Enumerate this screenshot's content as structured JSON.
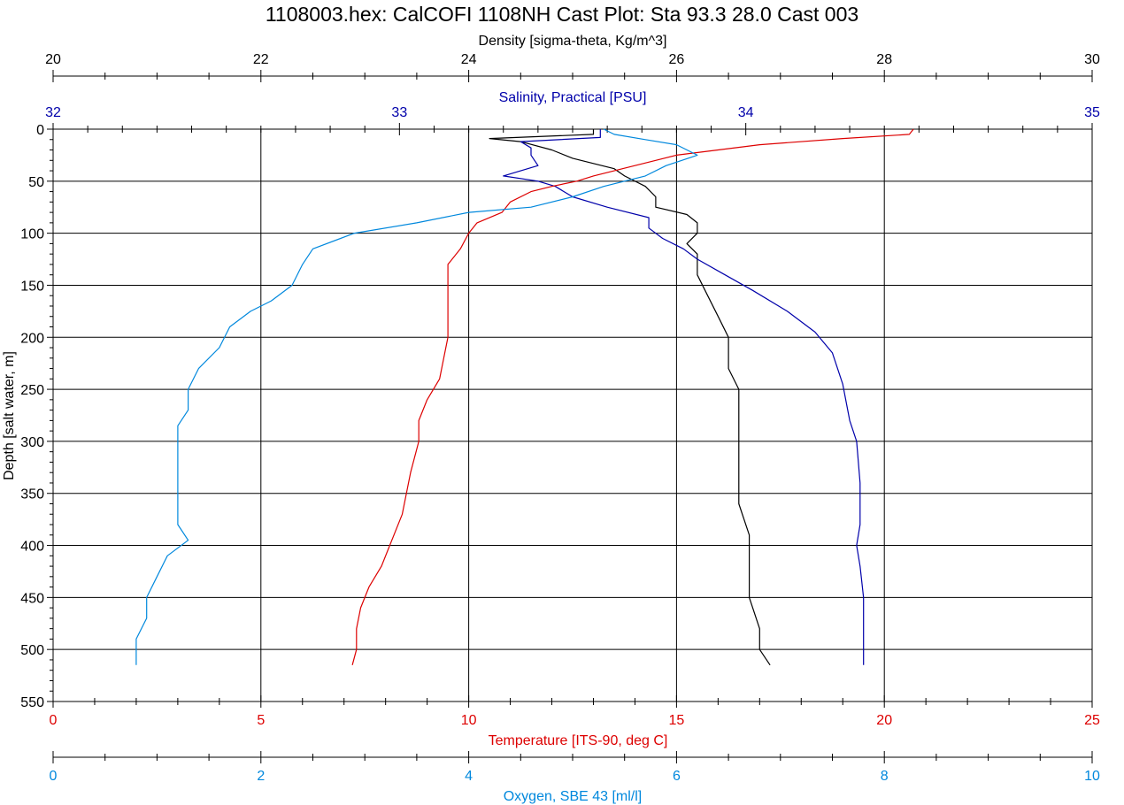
{
  "chart_data": {
    "type": "line",
    "title": "1108003.hex: CalCOFI 1108NH Cast Plot: Sta 93.3 28.0 Cast 003",
    "grid": true,
    "y_axis": {
      "label": "Depth [salt water, m]",
      "range": [
        0,
        550
      ],
      "inverted": true,
      "ticks": [
        "0",
        "50",
        "100",
        "150",
        "200",
        "250",
        "300",
        "350",
        "400",
        "450",
        "500",
        "550"
      ],
      "color": "#000000"
    },
    "axes": {
      "density": {
        "label": "Density [sigma-theta, Kg/m^3]",
        "position": "top",
        "range": [
          20,
          30
        ],
        "ticks": [
          "20",
          "22",
          "24",
          "26",
          "28",
          "30"
        ],
        "color": "#000000"
      },
      "salinity": {
        "label": "Salinity, Practical [PSU]",
        "position": "top",
        "range": [
          32,
          35
        ],
        "ticks": [
          "32",
          "33",
          "34",
          "35"
        ],
        "color": "#0000aa"
      },
      "temperature": {
        "label": "Temperature [ITS-90, deg C]",
        "position": "bottom",
        "range": [
          0,
          25
        ],
        "ticks": [
          "0",
          "5",
          "10",
          "15",
          "20",
          "25"
        ],
        "color": "#dd0000"
      },
      "oxygen": {
        "label": "Oxygen, SBE 43 [ml/l]",
        "position": "bottom",
        "range": [
          0,
          10
        ],
        "ticks": [
          "0",
          "2",
          "4",
          "6",
          "8",
          "10"
        ],
        "color": "#0088dd"
      }
    },
    "series": [
      {
        "axis": "density",
        "color": "#000000",
        "points": [
          [
            0,
            25.2
          ],
          [
            5,
            25.2
          ],
          [
            9,
            24.2
          ],
          [
            12,
            24.5
          ],
          [
            20,
            24.8
          ],
          [
            28,
            25.0
          ],
          [
            38,
            25.4
          ],
          [
            45,
            25.5
          ],
          [
            55,
            25.7
          ],
          [
            65,
            25.8
          ],
          [
            75,
            25.8
          ],
          [
            82,
            26.1
          ],
          [
            90,
            26.2
          ],
          [
            100,
            26.2
          ],
          [
            110,
            26.1
          ],
          [
            120,
            26.2
          ],
          [
            140,
            26.2
          ],
          [
            160,
            26.3
          ],
          [
            180,
            26.4
          ],
          [
            200,
            26.5
          ],
          [
            230,
            26.5
          ],
          [
            250,
            26.6
          ],
          [
            280,
            26.6
          ],
          [
            300,
            26.6
          ],
          [
            330,
            26.6
          ],
          [
            360,
            26.6
          ],
          [
            390,
            26.7
          ],
          [
            420,
            26.7
          ],
          [
            450,
            26.7
          ],
          [
            480,
            26.8
          ],
          [
            500,
            26.8
          ],
          [
            515,
            26.9
          ]
        ]
      },
      {
        "axis": "salinity",
        "color": "#0000aa",
        "points": [
          [
            0,
            33.58
          ],
          [
            8,
            33.58
          ],
          [
            12,
            33.35
          ],
          [
            18,
            33.38
          ],
          [
            25,
            33.38
          ],
          [
            35,
            33.4
          ],
          [
            45,
            33.3
          ],
          [
            50,
            33.4
          ],
          [
            55,
            33.45
          ],
          [
            65,
            33.5
          ],
          [
            75,
            33.6
          ],
          [
            85,
            33.72
          ],
          [
            95,
            33.72
          ],
          [
            105,
            33.76
          ],
          [
            115,
            33.82
          ],
          [
            125,
            33.86
          ],
          [
            140,
            33.94
          ],
          [
            155,
            34.02
          ],
          [
            175,
            34.12
          ],
          [
            195,
            34.2
          ],
          [
            215,
            34.25
          ],
          [
            245,
            34.28
          ],
          [
            280,
            34.3
          ],
          [
            300,
            34.32
          ],
          [
            340,
            34.33
          ],
          [
            380,
            34.33
          ],
          [
            400,
            34.32
          ],
          [
            420,
            34.33
          ],
          [
            450,
            34.34
          ],
          [
            480,
            34.34
          ],
          [
            515,
            34.34
          ]
        ]
      },
      {
        "axis": "temperature",
        "color": "#dd0000",
        "points": [
          [
            0,
            20.7
          ],
          [
            5,
            20.6
          ],
          [
            9,
            19.0
          ],
          [
            15,
            17.0
          ],
          [
            20,
            16.0
          ],
          [
            25,
            15.0
          ],
          [
            30,
            14.5
          ],
          [
            38,
            13.7
          ],
          [
            45,
            13.0
          ],
          [
            50,
            12.6
          ],
          [
            55,
            12.0
          ],
          [
            60,
            11.5
          ],
          [
            70,
            11.0
          ],
          [
            80,
            10.8
          ],
          [
            90,
            10.2
          ],
          [
            100,
            10.0
          ],
          [
            115,
            9.8
          ],
          [
            130,
            9.5
          ],
          [
            150,
            9.5
          ],
          [
            170,
            9.5
          ],
          [
            200,
            9.5
          ],
          [
            220,
            9.4
          ],
          [
            240,
            9.3
          ],
          [
            260,
            9.0
          ],
          [
            280,
            8.8
          ],
          [
            300,
            8.8
          ],
          [
            330,
            8.6
          ],
          [
            350,
            8.5
          ],
          [
            370,
            8.4
          ],
          [
            390,
            8.2
          ],
          [
            400,
            8.1
          ],
          [
            420,
            7.9
          ],
          [
            440,
            7.6
          ],
          [
            460,
            7.4
          ],
          [
            480,
            7.3
          ],
          [
            500,
            7.3
          ],
          [
            515,
            7.2
          ]
        ]
      },
      {
        "axis": "oxygen",
        "color": "#0088dd",
        "points": [
          [
            0,
            5.3
          ],
          [
            5,
            5.4
          ],
          [
            10,
            5.7
          ],
          [
            15,
            6.0
          ],
          [
            25,
            6.2
          ],
          [
            35,
            5.9
          ],
          [
            45,
            5.7
          ],
          [
            55,
            5.3
          ],
          [
            65,
            5.0
          ],
          [
            75,
            4.6
          ],
          [
            80,
            4.0
          ],
          [
            90,
            3.5
          ],
          [
            100,
            2.9
          ],
          [
            115,
            2.5
          ],
          [
            130,
            2.4
          ],
          [
            150,
            2.3
          ],
          [
            165,
            2.1
          ],
          [
            175,
            1.9
          ],
          [
            190,
            1.7
          ],
          [
            210,
            1.6
          ],
          [
            230,
            1.4
          ],
          [
            250,
            1.3
          ],
          [
            270,
            1.3
          ],
          [
            285,
            1.2
          ],
          [
            300,
            1.2
          ],
          [
            320,
            1.2
          ],
          [
            340,
            1.2
          ],
          [
            360,
            1.2
          ],
          [
            380,
            1.2
          ],
          [
            395,
            1.3
          ],
          [
            410,
            1.1
          ],
          [
            430,
            1.0
          ],
          [
            450,
            0.9
          ],
          [
            470,
            0.9
          ],
          [
            490,
            0.8
          ],
          [
            505,
            0.8
          ],
          [
            515,
            0.8
          ]
        ]
      }
    ]
  }
}
